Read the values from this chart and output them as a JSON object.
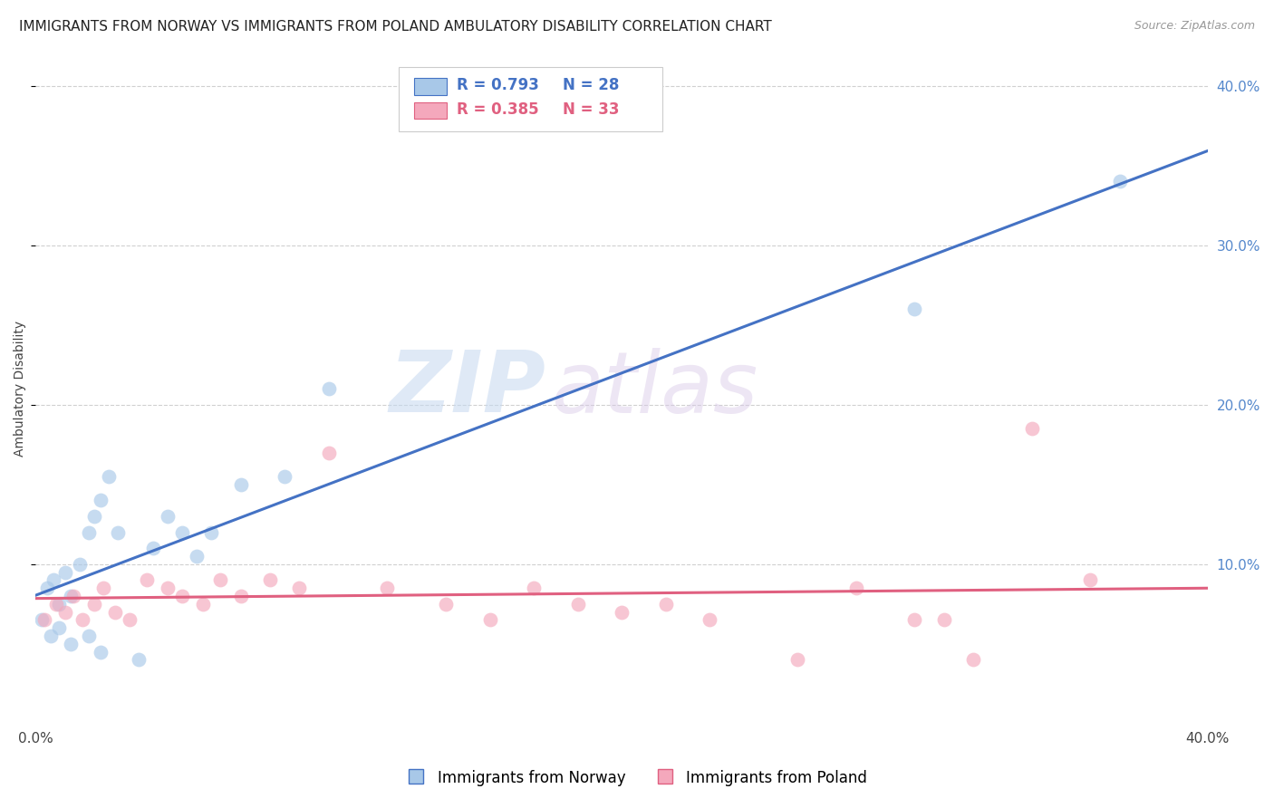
{
  "title": "IMMIGRANTS FROM NORWAY VS IMMIGRANTS FROM POLAND AMBULATORY DISABILITY CORRELATION CHART",
  "source": "Source: ZipAtlas.com",
  "ylabel": "Ambulatory Disability",
  "xlim": [
    0.0,
    0.4
  ],
  "ylim": [
    0.0,
    0.42
  ],
  "y_ticks_right": [
    0.1,
    0.2,
    0.3,
    0.4
  ],
  "y_tick_labels_right": [
    "10.0%",
    "20.0%",
    "30.0%",
    "40.0%"
  ],
  "norway_color": "#a8c8e8",
  "poland_color": "#f4a8bc",
  "norway_line_color": "#4472c4",
  "poland_line_color": "#e06080",
  "norway_R": 0.793,
  "norway_N": 28,
  "poland_R": 0.385,
  "poland_N": 33,
  "norway_scatter_x": [
    0.002,
    0.004,
    0.006,
    0.008,
    0.01,
    0.012,
    0.015,
    0.018,
    0.02,
    0.022,
    0.025,
    0.028,
    0.005,
    0.008,
    0.012,
    0.018,
    0.022,
    0.035,
    0.04,
    0.045,
    0.05,
    0.055,
    0.06,
    0.07,
    0.085,
    0.1,
    0.3,
    0.37
  ],
  "norway_scatter_y": [
    0.065,
    0.085,
    0.09,
    0.075,
    0.095,
    0.08,
    0.1,
    0.12,
    0.13,
    0.14,
    0.155,
    0.12,
    0.055,
    0.06,
    0.05,
    0.055,
    0.045,
    0.04,
    0.11,
    0.13,
    0.12,
    0.105,
    0.12,
    0.15,
    0.155,
    0.21,
    0.26,
    0.34
  ],
  "poland_scatter_x": [
    0.003,
    0.007,
    0.01,
    0.013,
    0.016,
    0.02,
    0.023,
    0.027,
    0.032,
    0.038,
    0.045,
    0.05,
    0.057,
    0.063,
    0.07,
    0.08,
    0.09,
    0.1,
    0.12,
    0.14,
    0.155,
    0.17,
    0.185,
    0.2,
    0.215,
    0.23,
    0.26,
    0.28,
    0.3,
    0.31,
    0.32,
    0.34,
    0.36
  ],
  "poland_scatter_y": [
    0.065,
    0.075,
    0.07,
    0.08,
    0.065,
    0.075,
    0.085,
    0.07,
    0.065,
    0.09,
    0.085,
    0.08,
    0.075,
    0.09,
    0.08,
    0.09,
    0.085,
    0.17,
    0.085,
    0.075,
    0.065,
    0.085,
    0.075,
    0.07,
    0.075,
    0.065,
    0.04,
    0.085,
    0.065,
    0.065,
    0.04,
    0.185,
    0.09
  ],
  "watermark_zip": "ZIP",
  "watermark_atlas": "atlas",
  "background_color": "#ffffff",
  "grid_color": "#d0d0d0",
  "title_fontsize": 11,
  "axis_label_fontsize": 10,
  "tick_fontsize": 11,
  "legend_fontsize": 12,
  "bottom_legend_label1": "Immigrants from Norway",
  "bottom_legend_label2": "Immigrants from Poland"
}
